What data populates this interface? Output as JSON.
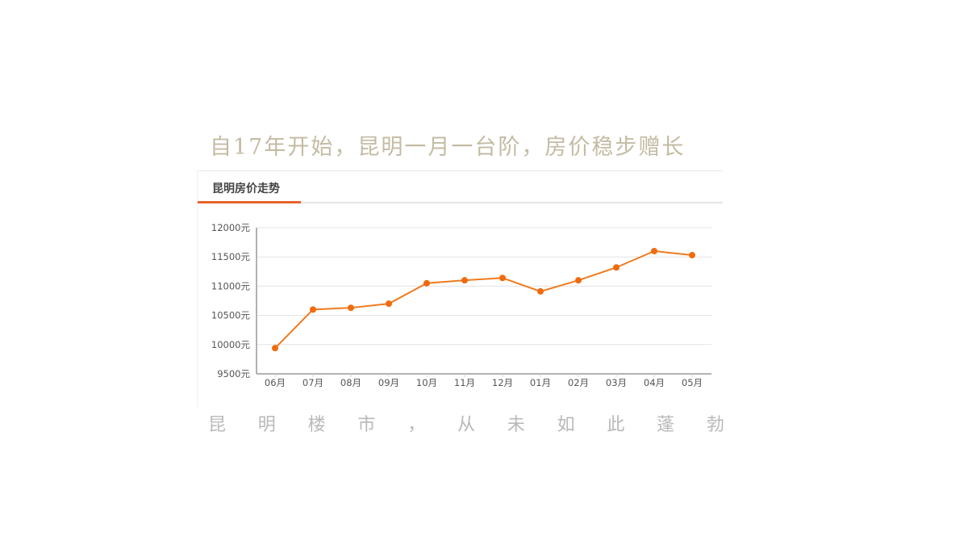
{
  "headline": "自17年开始，昆明一月一台阶，房价稳步赠长",
  "panel": {
    "title": "昆明房价走势",
    "accent_color": "#e8632a",
    "line_color": "#f07a1e"
  },
  "subline": [
    "昆",
    "明",
    "楼",
    "市",
    "，",
    "从",
    "未",
    "如",
    "此",
    "蓬",
    "勃"
  ],
  "chart_data": {
    "type": "line",
    "title": "昆明房价走势",
    "xlabel": "",
    "ylabel": "",
    "categories": [
      "06月",
      "07月",
      "08月",
      "09月",
      "10月",
      "11月",
      "12月",
      "01月",
      "02月",
      "03月",
      "04月",
      "05月"
    ],
    "series": [
      {
        "name": "昆明房价",
        "values": [
          9940,
          10600,
          10630,
          10700,
          11050,
          11100,
          11140,
          10910,
          11100,
          11320,
          11600,
          11530
        ]
      }
    ],
    "yticks": [
      "9500元",
      "10000元",
      "10500元",
      "11000元",
      "11500元",
      "12000元"
    ],
    "ylim": [
      9500,
      12000
    ],
    "grid": true,
    "legend": "none"
  }
}
